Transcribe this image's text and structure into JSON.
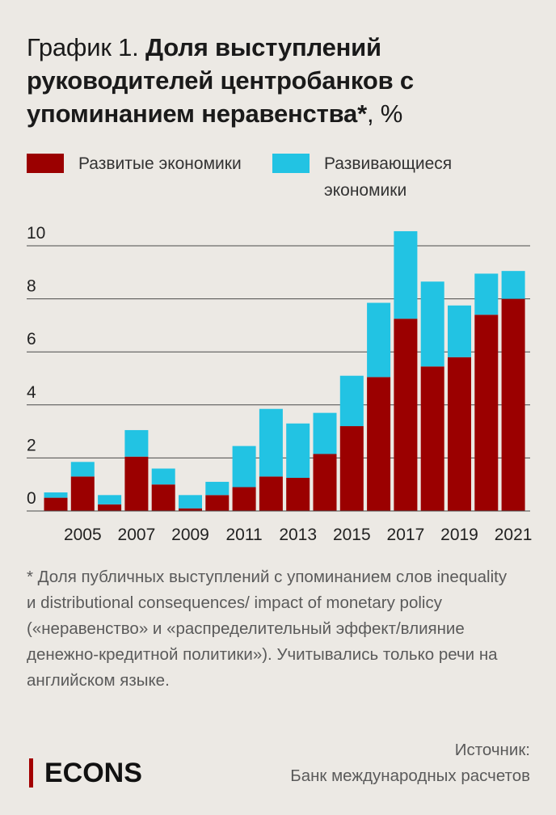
{
  "header": {
    "prefix": "График 1.",
    "title_bold": "Доля выступлений руководителей центробанков с упоминанием неравенства*",
    "suffix": ", %"
  },
  "legend": [
    {
      "label": "Развитые экономики",
      "color": "#9b0000"
    },
    {
      "label": "Развивающиеся экономики",
      "color": "#22c3e3"
    }
  ],
  "chart_data": {
    "type": "bar",
    "stacked": true,
    "categories": [
      "2004",
      "2005",
      "2006",
      "2007",
      "2008",
      "2009",
      "2010",
      "2011",
      "2012",
      "2013",
      "2014",
      "2015",
      "2016",
      "2017",
      "2018",
      "2019",
      "2020",
      "2021"
    ],
    "x_tick_labels": [
      "2005",
      "2007",
      "2009",
      "2011",
      "2013",
      "2015",
      "2017",
      "2019",
      "2021"
    ],
    "series": [
      {
        "name": "Развитые экономики",
        "color": "#9b0000",
        "values": [
          0.5,
          1.3,
          0.25,
          2.05,
          1.0,
          0.1,
          0.6,
          0.9,
          1.3,
          1.25,
          2.15,
          3.2,
          5.05,
          7.25,
          5.45,
          5.8,
          7.4,
          8.0
        ]
      },
      {
        "name": "Развивающиеся экономики",
        "color": "#22c3e3",
        "values": [
          0.2,
          0.55,
          0.35,
          1.0,
          0.6,
          0.5,
          0.5,
          1.55,
          2.55,
          2.05,
          1.55,
          1.9,
          2.8,
          3.3,
          3.2,
          1.95,
          1.55,
          1.05
        ]
      }
    ],
    "y_ticks": [
      0,
      2,
      4,
      6,
      8,
      10
    ],
    "ylim": [
      0,
      10
    ],
    "grid": true
  },
  "footnote": "* Доля публичных выступлений с упоминанием слов inequality и distributional consequences/ impact of monetary policy («неравенство» и «распределительный эффект/влияние денежно-кредитной политики»). Учитывались только речи на английском языке.",
  "source": {
    "line1": "Источник:",
    "line2": "Банк международных расчетов"
  },
  "brand": {
    "name": "ECONS",
    "accent": "#a30000"
  }
}
